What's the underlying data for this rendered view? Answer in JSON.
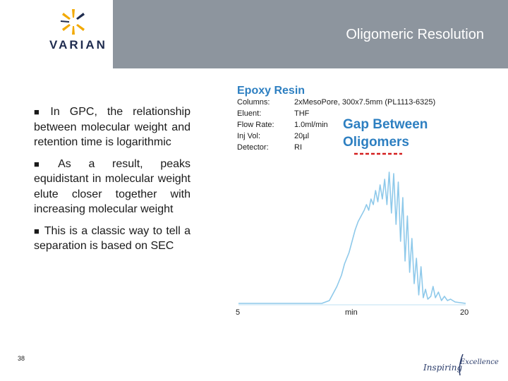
{
  "header": {
    "logo_text": "VARIAN",
    "title": "Oligomeric Resolution"
  },
  "bullets": [
    "In GPC, the relationship between molecular weight and retention time is logarithmic",
    "As a result, peaks equidistant in molecular weight elute closer together with increasing molecular weight",
    "This is a classic way to tell a separation is based on SEC"
  ],
  "chart": {
    "title": "Epoxy Resin",
    "conditions": [
      {
        "label": "Columns:",
        "value": "2xMesoPore, 300x7.5mm (PL1113-6325)"
      },
      {
        "label": "Eluent:",
        "value": "THF"
      },
      {
        "label": "Flow Rate:",
        "value": "1.0ml/min"
      },
      {
        "label": "Inj Vol:",
        "value": "20µl"
      },
      {
        "label": "Detector:",
        "value": "RI"
      }
    ],
    "annotation": [
      "Gap Between",
      "Oligomers"
    ],
    "x_tick_start": "5",
    "x_label": "min",
    "x_tick_end": "20",
    "colors": {
      "title": "#2d7fc1",
      "annotation": "#2d7fc1",
      "trace": "#8ec9ea",
      "dashes": "#d42020"
    }
  },
  "chart_data": {
    "type": "line",
    "title": "Epoxy Resin",
    "xlabel": "min",
    "ylabel": "",
    "xlim": [
      5,
      20
    ],
    "series": [
      {
        "x": [
          5.0,
          10.5,
          11.0,
          11.2,
          11.5,
          11.8,
          12.0,
          12.3,
          12.5,
          12.7,
          12.9,
          13.1,
          13.3,
          13.45,
          13.6,
          13.75,
          13.9,
          14.05,
          14.2,
          14.35,
          14.5,
          14.65,
          14.8,
          14.95,
          15.1,
          15.25,
          15.4,
          15.55,
          15.7,
          15.85,
          16.0,
          16.15,
          16.3,
          16.45,
          16.6,
          16.75,
          16.9,
          17.05,
          17.2,
          17.35,
          17.5,
          17.7,
          17.85,
          18.0,
          18.2,
          18.4,
          18.6,
          18.8,
          19.0,
          19.3,
          20.0
        ],
        "y": [
          0.0,
          0.0,
          0.02,
          0.06,
          0.12,
          0.2,
          0.28,
          0.36,
          0.44,
          0.52,
          0.58,
          0.62,
          0.66,
          0.7,
          0.66,
          0.74,
          0.7,
          0.8,
          0.72,
          0.84,
          0.74,
          0.88,
          0.7,
          0.93,
          0.64,
          0.92,
          0.56,
          0.86,
          0.44,
          0.75,
          0.3,
          0.62,
          0.22,
          0.46,
          0.14,
          0.32,
          0.06,
          0.26,
          0.04,
          0.1,
          0.03,
          0.05,
          0.12,
          0.04,
          0.08,
          0.02,
          0.05,
          0.02,
          0.03,
          0.01,
          0.0
        ]
      }
    ]
  },
  "footer": {
    "page_number": "38",
    "tagline_left": "Inspiring",
    "tagline_right": "Excellence"
  }
}
